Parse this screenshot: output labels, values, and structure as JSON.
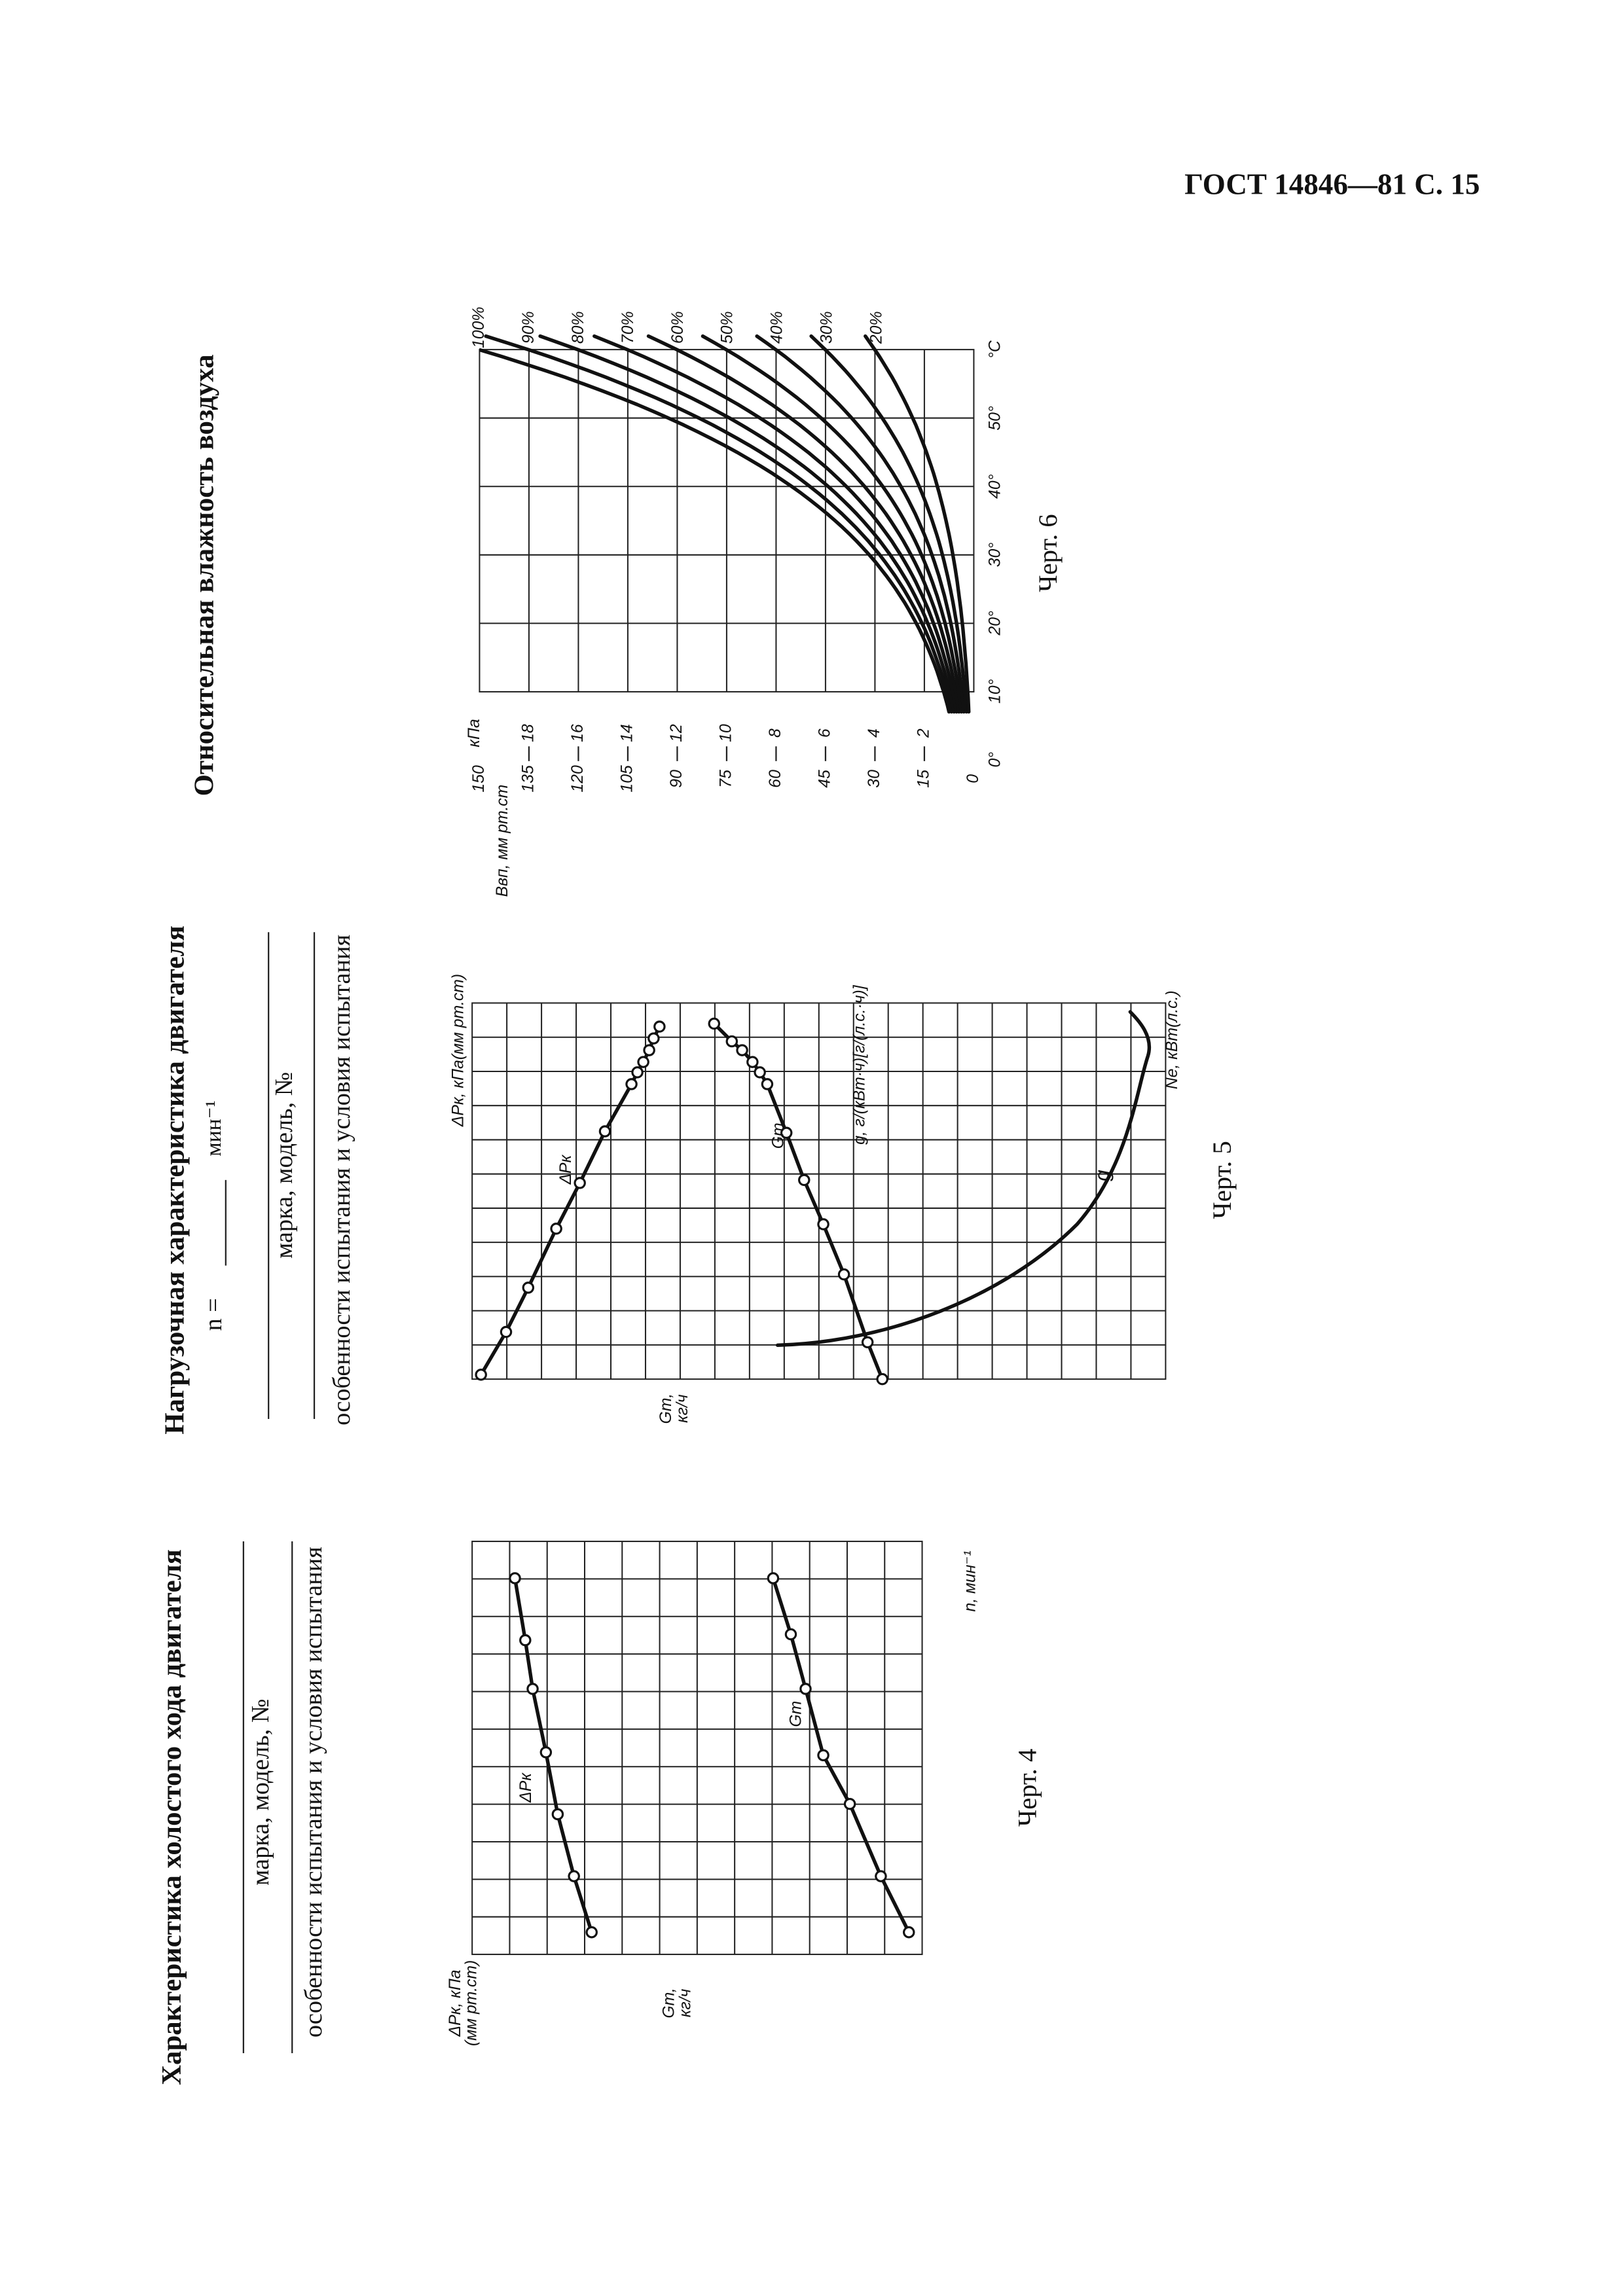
{
  "header": {
    "title": "ГОСТ 14846—81 С. 15"
  },
  "figure_4": {
    "title": "Характеристика холостого хода двигателя",
    "field_1": "марка, модель, №",
    "field_2": "особенности испытания и условия испытания",
    "axis_dp": "ΔPк, кПа",
    "axis_dp_unit": "(мм рт.ст)",
    "axis_gt": "Gт,",
    "axis_gt_unit": "кг/ч",
    "axis_n": "n, мин⁻¹",
    "curve_dp": "ΔPк",
    "curve_gt": "Gт",
    "caption": "Черт. 4"
  },
  "figure_5": {
    "title": "Нагрузочная характеристика двигателя",
    "speed_prefix": "n =",
    "speed_unit": "мин⁻¹",
    "field_1": "марка, модель, №",
    "field_2": "особенности испытания и условия испытания",
    "axis_dp": "ΔPк, кПа(мм рт.ст)",
    "axis_g": "g, г/(кВт·ч)[г/(л.с.·ч)]",
    "axis_ne": "Ne, кВт(л.с.)",
    "axis_gt": "Gт,",
    "axis_gt_unit": "кг/ч",
    "curve_dp": "ΔPк",
    "curve_gt": "Gт",
    "curve_g": "g",
    "caption": "Черт. 5"
  },
  "figure_6": {
    "title": "Относительная влажность воздуха",
    "axis_b": "Bвп, мм рт.ст",
    "mm_ticks": [
      "150",
      "135",
      "120",
      "105",
      "90",
      "75",
      "60",
      "45",
      "30",
      "15",
      "0"
    ],
    "kpa_unit": "кПа",
    "kpa_ticks": [
      "18",
      "16",
      "14",
      "12",
      "10",
      "8",
      "6",
      "4",
      "2"
    ],
    "t_ticks": [
      "0°",
      "10°",
      "20°",
      "30°",
      "40°",
      "50°"
    ],
    "t_unit": "°С",
    "humidity_labels": [
      "100%",
      "90%",
      "80%",
      "70%",
      "60%",
      "50%",
      "40%",
      "30%",
      "20%"
    ],
    "caption": "Черт. 6"
  }
}
